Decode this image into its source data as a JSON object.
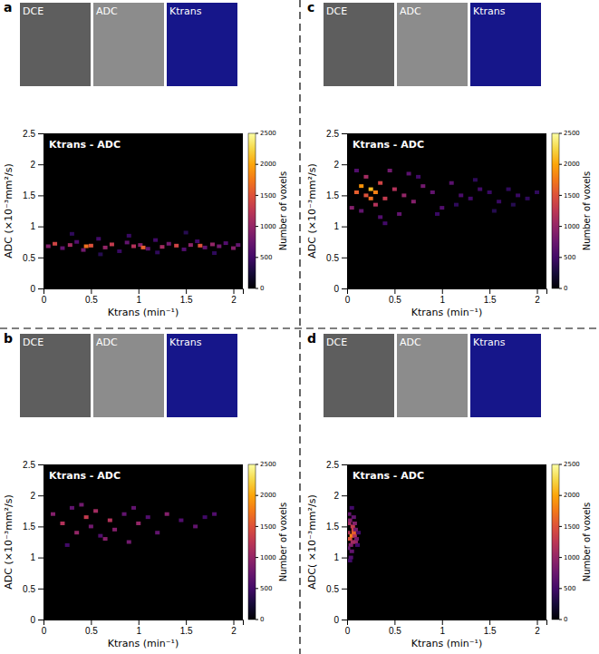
{
  "chart_data": [
    {
      "type": "heatmap",
      "panel": "a",
      "images": [
        "DCE",
        "ADC",
        "Ktrans"
      ],
      "title": "Ktrans - ADC",
      "x_label": "Ktrans (min⁻¹)",
      "y_label": "ADC (×10⁻³mm²/s)",
      "xlim": [
        0,
        2.1
      ],
      "ylim": [
        0,
        2.5
      ],
      "xticks": [
        0,
        0.5,
        1,
        1.5,
        2
      ],
      "yticks": [
        0,
        0.5,
        1,
        1.5,
        2,
        2.5
      ],
      "x": [
        0.05,
        0.12,
        0.2,
        0.28,
        0.35,
        0.42,
        0.5,
        0.58,
        0.65,
        0.72,
        0.8,
        0.88,
        0.95,
        1.02,
        1.1,
        1.18,
        1.25,
        1.32,
        1.4,
        1.48,
        1.55,
        1.62,
        1.7,
        1.78,
        1.85,
        1.92,
        2.0,
        2.05,
        0.3,
        0.6,
        0.9,
        1.2,
        1.5,
        1.8,
        0.45,
        1.05,
        1.65
      ],
      "y": [
        0.68,
        0.72,
        0.65,
        0.7,
        0.75,
        0.62,
        0.69,
        0.8,
        0.66,
        0.71,
        0.6,
        0.74,
        0.68,
        0.7,
        0.64,
        0.78,
        0.67,
        0.72,
        0.69,
        0.63,
        0.7,
        0.76,
        0.66,
        0.71,
        0.68,
        0.73,
        0.65,
        0.7,
        0.88,
        0.55,
        0.85,
        0.58,
        0.9,
        0.57,
        0.68,
        0.66,
        0.69
      ],
      "counts": [
        900,
        1400,
        700,
        1100,
        600,
        800,
        1500,
        500,
        1000,
        1300,
        450,
        700,
        1200,
        900,
        650,
        500,
        1100,
        800,
        1400,
        600,
        950,
        500,
        700,
        1000,
        800,
        600,
        900,
        700,
        400,
        350,
        450,
        400,
        350,
        400,
        1700,
        1600,
        1500
      ],
      "colorbar": {
        "label": "Number of voxels",
        "range": [
          0,
          2500
        ],
        "ticks": [
          0,
          500,
          1000,
          1500,
          2000,
          2500
        ]
      }
    },
    {
      "type": "heatmap",
      "panel": "b",
      "images": [
        "DCE",
        "ADC",
        "Ktrans"
      ],
      "title": "Ktrans - ADC",
      "x_label": "Ktrans (min⁻¹)",
      "y_label": "ADC (×10⁻³mm²/s)",
      "xlim": [
        0,
        2.1
      ],
      "ylim": [
        0,
        2.5
      ],
      "xticks": [
        0,
        0.5,
        1,
        1.5,
        2
      ],
      "yticks": [
        0,
        0.5,
        1,
        1.5,
        2,
        2.5
      ],
      "x": [
        0.1,
        0.2,
        0.3,
        0.35,
        0.45,
        0.5,
        0.55,
        0.6,
        0.7,
        0.75,
        0.85,
        0.9,
        1.0,
        1.1,
        1.2,
        1.3,
        1.45,
        1.6,
        1.7,
        1.8,
        0.25,
        0.4,
        0.65,
        0.95
      ],
      "y": [
        1.7,
        1.55,
        1.8,
        1.4,
        1.65,
        1.5,
        1.75,
        1.35,
        1.6,
        1.45,
        1.7,
        1.25,
        1.55,
        1.65,
        1.4,
        1.7,
        1.6,
        1.5,
        1.65,
        1.7,
        1.2,
        1.85,
        1.3,
        1.8
      ],
      "counts": [
        900,
        1200,
        700,
        1000,
        1300,
        800,
        1100,
        600,
        1200,
        900,
        700,
        800,
        1000,
        600,
        700,
        900,
        600,
        700,
        500,
        600,
        500,
        800,
        900,
        700
      ],
      "colorbar": {
        "label": "Number of voxels",
        "range": [
          0,
          2500
        ],
        "ticks": [
          0,
          500,
          1000,
          1500,
          2000,
          2500
        ]
      }
    },
    {
      "type": "heatmap",
      "panel": "c",
      "images": [
        "DCE",
        "ADC",
        "Ktrans"
      ],
      "title": "Ktrans - ADC",
      "x_label": "Ktrans (min⁻¹)",
      "y_label": "ADC (×10⁻³mm²/s)",
      "xlim": [
        0,
        2.1
      ],
      "ylim": [
        0,
        2.5
      ],
      "xticks": [
        0,
        0.5,
        1,
        1.5,
        2
      ],
      "yticks": [
        0,
        0.5,
        1,
        1.5,
        2,
        2.5
      ],
      "x": [
        0.1,
        0.15,
        0.2,
        0.25,
        0.3,
        0.35,
        0.4,
        0.2,
        0.3,
        0.25,
        0.5,
        0.6,
        0.7,
        0.8,
        0.9,
        1.0,
        1.1,
        1.2,
        1.3,
        1.4,
        1.5,
        1.6,
        1.7,
        1.8,
        1.9,
        2.0,
        0.05,
        0.45,
        0.55,
        0.65,
        0.15,
        0.35,
        0.75,
        0.95,
        1.15,
        1.35,
        1.55,
        1.75,
        0.1,
        0.4
      ],
      "y": [
        1.55,
        1.65,
        1.5,
        1.6,
        1.55,
        1.7,
        1.45,
        1.8,
        1.35,
        1.45,
        1.6,
        1.5,
        1.4,
        1.65,
        1.55,
        1.3,
        1.7,
        1.5,
        1.45,
        1.6,
        1.55,
        1.4,
        1.6,
        1.5,
        1.45,
        1.55,
        1.3,
        1.9,
        1.2,
        1.85,
        1.25,
        1.15,
        1.8,
        1.2,
        1.35,
        1.75,
        1.25,
        1.35,
        1.9,
        1.05
      ],
      "counts": [
        1600,
        1900,
        1500,
        2100,
        1800,
        1400,
        1300,
        1100,
        1200,
        1700,
        1200,
        1000,
        900,
        800,
        700,
        600,
        650,
        550,
        500,
        500,
        450,
        450,
        400,
        450,
        400,
        400,
        900,
        800,
        700,
        650,
        700,
        600,
        500,
        450,
        400,
        400,
        350,
        350,
        600,
        500
      ],
      "colorbar": {
        "label": "Number of voxels",
        "range": [
          0,
          2500
        ],
        "ticks": [
          0,
          500,
          1000,
          1500,
          2000,
          2500
        ]
      }
    },
    {
      "type": "heatmap",
      "panel": "d",
      "images": [
        "DCE",
        "ADC",
        "Ktrans"
      ],
      "title": "Ktrans - ADC",
      "x_label": "Ktrans (min⁻¹)",
      "y_label": "ADC( ×10⁻³mm²/s)",
      "xlim": [
        0,
        2.1
      ],
      "ylim": [
        0,
        2.5
      ],
      "xticks": [
        0,
        0.5,
        1,
        1.5,
        2
      ],
      "yticks": [
        0,
        0.5,
        1,
        1.5,
        2,
        2.5
      ],
      "x": [
        0.01,
        0.03,
        0.05,
        0.07,
        0.09,
        0.02,
        0.04,
        0.06,
        0.08,
        0.1,
        0.03,
        0.05,
        0.07,
        0.02,
        0.06,
        0.04,
        0.08,
        0.12,
        0.01,
        0.05,
        0.03,
        0.07,
        0.09,
        0.11
      ],
      "y": [
        1.4,
        1.3,
        1.35,
        1.45,
        1.25,
        1.55,
        1.2,
        1.5,
        1.35,
        1.3,
        1.6,
        1.1,
        1.4,
        1.7,
        1.25,
        1.0,
        1.55,
        1.4,
        1.15,
        1.8,
        0.95,
        1.65,
        1.45,
        1.2
      ],
      "counts": [
        1200,
        1500,
        1800,
        1400,
        1000,
        1100,
        900,
        1300,
        1200,
        800,
        900,
        700,
        1600,
        700,
        1100,
        600,
        900,
        500,
        700,
        500,
        500,
        700,
        800,
        500
      ],
      "colorbar": {
        "label": "Number of voxels",
        "range": [
          0,
          2500
        ],
        "ticks": [
          0,
          500,
          1000,
          1500,
          2000,
          2500
        ]
      }
    }
  ]
}
